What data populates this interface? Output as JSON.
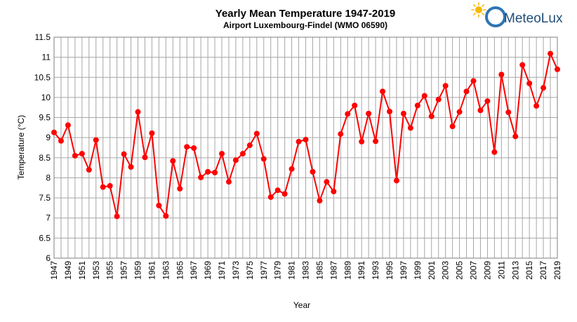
{
  "logo": {
    "text": "MeteoLux",
    "colors": {
      "sun": "#f6b800",
      "ring": "#2e75b6",
      "text": "#1f4e79"
    }
  },
  "chart_data": {
    "type": "line",
    "title": "Yearly Mean Temperature 1947-2019",
    "subtitle": "Airport Luxembourg-Findel (WMO 06590)",
    "xlabel": "Year",
    "ylabel": "Temperature (°C)",
    "ylim": [
      6,
      11.5
    ],
    "yticks": [
      "6",
      "6.5",
      "7",
      "7.5",
      "8",
      "8.5",
      "9",
      "9.5",
      "10",
      "10.5",
      "11",
      "11.5"
    ],
    "xticks": [
      "1947",
      "1949",
      "1951",
      "1953",
      "1955",
      "1957",
      "1959",
      "1961",
      "1963",
      "1965",
      "1967",
      "1969",
      "1971",
      "1973",
      "1975",
      "1977",
      "1979",
      "1981",
      "1983",
      "1985",
      "1987",
      "1989",
      "1991",
      "1993",
      "1995",
      "1997",
      "1999",
      "2001",
      "2003",
      "2005",
      "2007",
      "2009",
      "2011",
      "2013",
      "2015",
      "2017",
      "2019"
    ],
    "grid": true,
    "color": "#ff0000",
    "x": [
      1947,
      1948,
      1949,
      1950,
      1951,
      1952,
      1953,
      1954,
      1955,
      1956,
      1957,
      1958,
      1959,
      1960,
      1961,
      1962,
      1963,
      1964,
      1965,
      1966,
      1967,
      1968,
      1969,
      1970,
      1971,
      1972,
      1973,
      1974,
      1975,
      1976,
      1977,
      1978,
      1979,
      1980,
      1981,
      1982,
      1983,
      1984,
      1985,
      1986,
      1987,
      1988,
      1989,
      1990,
      1991,
      1992,
      1993,
      1994,
      1995,
      1996,
      1997,
      1998,
      1999,
      2000,
      2001,
      2002,
      2003,
      2004,
      2005,
      2006,
      2007,
      2008,
      2009,
      2010,
      2011,
      2012,
      2013,
      2014,
      2015,
      2016,
      2017,
      2018,
      2019
    ],
    "values": [
      9.13,
      8.92,
      9.31,
      8.55,
      8.6,
      8.2,
      8.94,
      7.77,
      7.8,
      7.04,
      8.59,
      8.27,
      9.64,
      8.51,
      9.11,
      7.31,
      7.05,
      8.42,
      7.73,
      8.77,
      8.74,
      8.01,
      8.15,
      8.13,
      8.6,
      7.9,
      8.44,
      8.6,
      8.81,
      9.1,
      8.47,
      7.52,
      7.69,
      7.6,
      8.22,
      8.9,
      8.95,
      8.15,
      7.43,
      7.9,
      7.66,
      9.09,
      9.59,
      9.8,
      8.9,
      9.6,
      8.91,
      10.15,
      9.65,
      7.93,
      9.6,
      9.24,
      9.8,
      10.04,
      9.53,
      9.95,
      10.29,
      9.28,
      9.64,
      10.15,
      10.41,
      9.68,
      9.91,
      8.64,
      10.57,
      9.63,
      9.03,
      10.81,
      10.35,
      9.79,
      10.24,
      11.09,
      10.7
    ]
  }
}
